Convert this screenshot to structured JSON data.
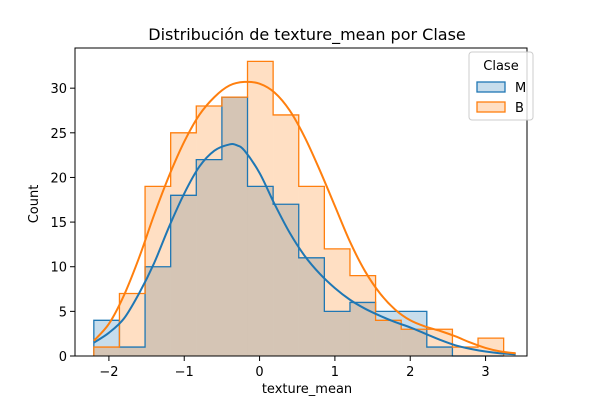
{
  "chart_data": {
    "type": "histogram",
    "title": "Distribución de texture_mean por Clase",
    "xlabel": "texture_mean",
    "ylabel": "Count",
    "xlim": [
      -2.45,
      3.55
    ],
    "ylim": [
      0,
      34.5
    ],
    "xticks": [
      -2,
      -1,
      0,
      1,
      2,
      3
    ],
    "xtick_labels": [
      "−2",
      "−1",
      "0",
      "1",
      "2",
      "3"
    ],
    "yticks": [
      0,
      5,
      10,
      15,
      20,
      25,
      30
    ],
    "grid": false,
    "legend": {
      "title": "Clase",
      "placement": "top-right"
    },
    "bin_edges": [
      -2.2,
      -1.86,
      -1.52,
      -1.18,
      -0.84,
      -0.5,
      -0.16,
      0.18,
      0.52,
      0.86,
      1.2,
      1.54,
      1.88,
      2.22,
      2.56,
      2.9,
      3.24
    ],
    "series": [
      {
        "name": "M",
        "color": "#1f77b4",
        "counts": [
          4,
          1,
          10,
          18,
          22,
          29,
          19,
          17,
          11,
          5,
          6,
          5,
          5,
          1,
          0,
          0
        ],
        "kde_x": [
          -2.2,
          -2.0,
          -1.8,
          -1.6,
          -1.4,
          -1.2,
          -1.0,
          -0.8,
          -0.6,
          -0.4,
          -0.3,
          -0.2,
          0.0,
          0.2,
          0.4,
          0.6,
          0.8,
          1.0,
          1.2,
          1.4,
          1.6,
          1.8,
          2.0,
          2.2,
          2.4,
          2.6,
          2.8,
          3.0,
          3.2,
          3.4
        ],
        "kde_y": [
          1.5,
          2.6,
          4.2,
          7.0,
          10.4,
          14.5,
          18.2,
          21.2,
          23.0,
          23.7,
          23.6,
          23.0,
          20.5,
          17.0,
          13.8,
          11.2,
          9.2,
          7.6,
          6.3,
          5.3,
          4.5,
          3.8,
          3.2,
          2.5,
          1.8,
          1.2,
          0.8,
          0.5,
          0.3,
          0.2
        ]
      },
      {
        "name": "B",
        "color": "#ff7f0e",
        "counts": [
          1,
          7,
          19,
          25,
          28,
          29,
          33,
          27,
          19,
          12,
          9,
          4,
          3,
          3,
          1,
          2
        ],
        "kde_x": [
          -2.2,
          -2.0,
          -1.8,
          -1.6,
          -1.4,
          -1.2,
          -1.0,
          -0.8,
          -0.6,
          -0.4,
          -0.2,
          0.0,
          0.2,
          0.4,
          0.6,
          0.8,
          1.0,
          1.2,
          1.4,
          1.6,
          1.8,
          2.0,
          2.2,
          2.4,
          2.6,
          2.8,
          3.0,
          3.2,
          3.4
        ],
        "kde_y": [
          1.7,
          3.6,
          6.8,
          11.0,
          15.8,
          20.2,
          24.0,
          27.0,
          29.0,
          30.3,
          30.7,
          30.5,
          29.5,
          27.5,
          24.5,
          20.8,
          16.8,
          12.8,
          9.5,
          7.0,
          5.2,
          4.0,
          3.3,
          2.8,
          2.2,
          1.5,
          0.9,
          0.5,
          0.3
        ]
      }
    ]
  }
}
